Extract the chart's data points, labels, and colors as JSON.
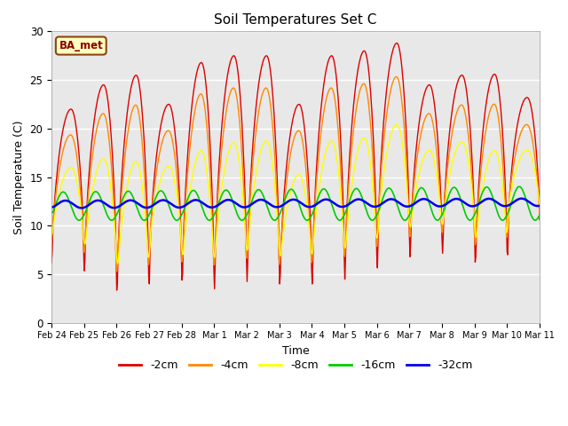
{
  "title": "Soil Temperatures Set C",
  "xlabel": "Time",
  "ylabel": "Soil Temperature (C)",
  "ylim": [
    0,
    30
  ],
  "background_color": "#e8e8e8",
  "plot_bg_color": "#e8e8e8",
  "fig_facecolor": "#ffffff",
  "label_box_text": "BA_met",
  "label_box_facecolor": "#ffffc0",
  "label_box_edgecolor": "#8b4513",
  "label_box_textcolor": "#8b0000",
  "series_colors": [
    "#dd0000",
    "#ff8800",
    "#ffff00",
    "#00cc00",
    "#0000ee"
  ],
  "series_labels": [
    "-2cm",
    "-4cm",
    "-8cm",
    "-16cm",
    "-32cm"
  ],
  "series_linewidths": [
    1.0,
    1.0,
    1.0,
    1.2,
    1.8
  ],
  "tick_labels": [
    "Feb 24",
    "Feb 25",
    "Feb 26",
    "Feb 27",
    "Feb 28",
    "Mar 1",
    "Mar 2",
    "Mar 3",
    "Mar 4",
    "Mar 5",
    "Mar 6",
    "Mar 7",
    "Mar 8",
    "Mar 9",
    "Mar 10",
    "Mar 11"
  ],
  "n_days": 15,
  "points_per_day": 48
}
